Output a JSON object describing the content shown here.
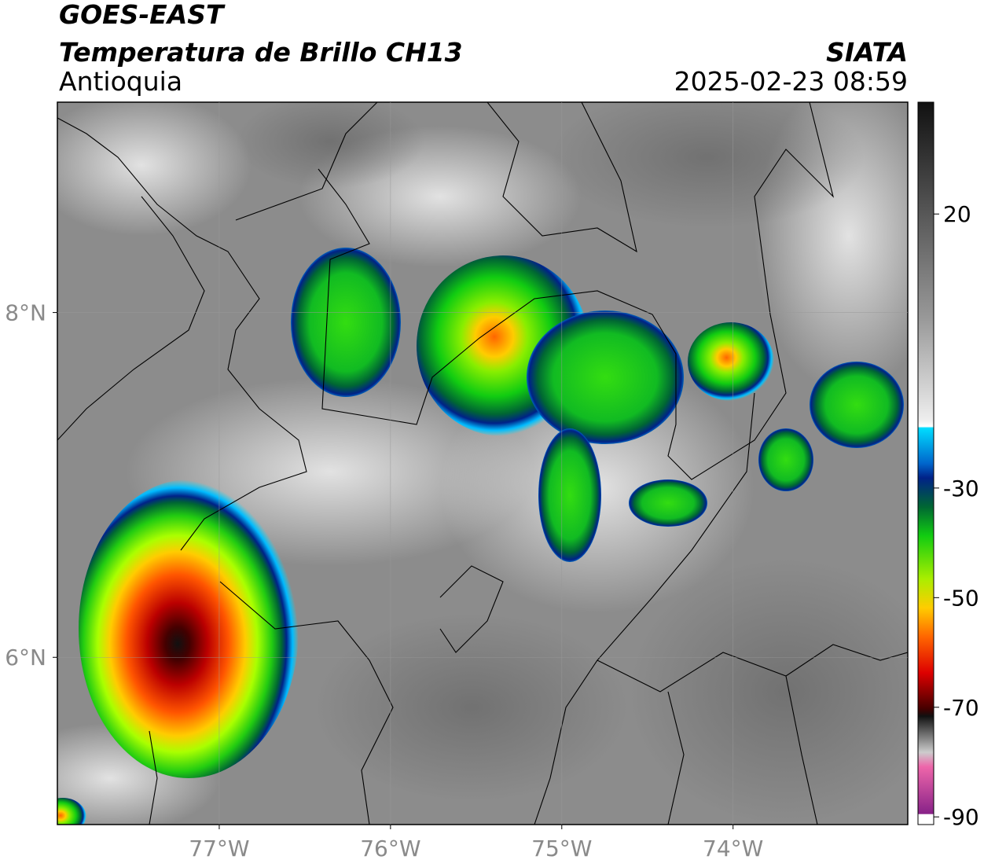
{
  "header": {
    "title": "GOES-EAST",
    "subtitle": "Temperatura de Brillo CH13",
    "region": "Antioquia",
    "source": "SIATA",
    "datetime": "2025-02-23 08:59"
  },
  "map": {
    "xlim": [
      -77.945,
      -72.98
    ],
    "ylim": [
      5.03,
      9.22
    ],
    "xticks": [
      {
        "value": -77,
        "label": "77°W"
      },
      {
        "value": -76,
        "label": "76°W"
      },
      {
        "value": -75,
        "label": "75°W"
      },
      {
        "value": -74,
        "label": "74°W"
      }
    ],
    "yticks": [
      {
        "value": 8,
        "label": "8°N"
      },
      {
        "value": 6,
        "label": "6°N"
      }
    ],
    "grid": true
  },
  "colorbar": {
    "lim": [
      -91.4,
      40.4
    ],
    "ticks": [
      20,
      -30,
      -50,
      -70,
      -90
    ]
  }
}
